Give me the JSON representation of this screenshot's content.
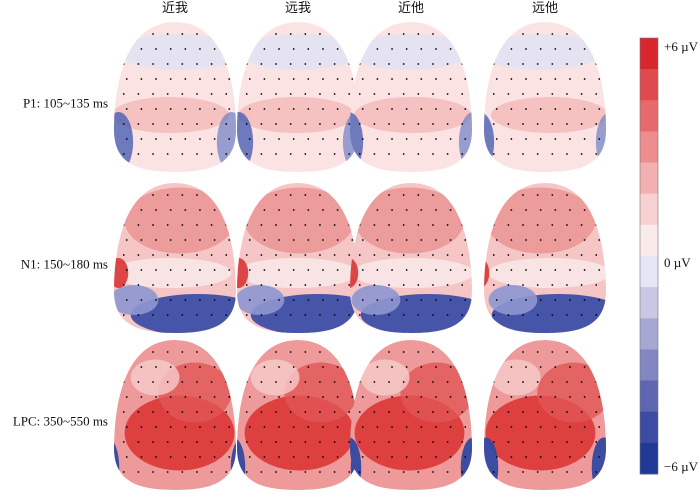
{
  "columns": [
    "近我",
    "远我",
    "近他",
    "远他"
  ],
  "rows": [
    "P1: 105~135 ms",
    "N1: 150~180 ms",
    "LPC: 350~550 ms"
  ],
  "colorbar": {
    "labels": [
      "+6 µV",
      "0 µV",
      "−6 µV"
    ]
  }
}
